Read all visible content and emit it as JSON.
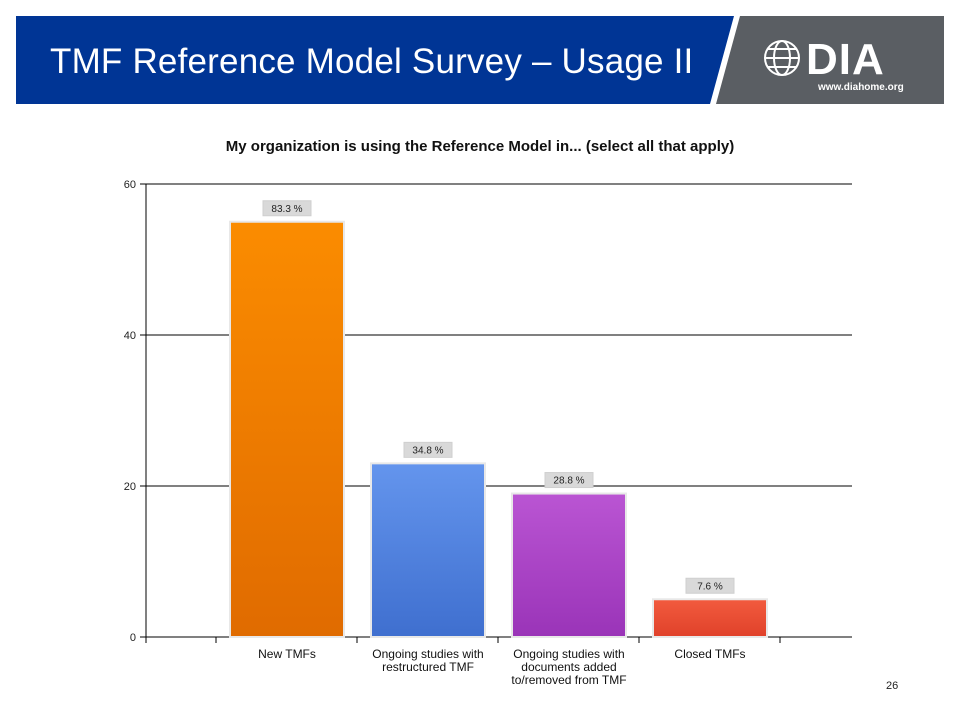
{
  "header": {
    "title": "TMF Reference Model Survey – Usage II",
    "logo_text": "DIA",
    "logo_url": "www.diahome.org",
    "bar_color": "#003595",
    "logo_panel_color": "#5a5e63"
  },
  "chart_data": {
    "type": "bar",
    "title": "My organization is using the Reference Model in... (select all that apply)",
    "categories": [
      "New TMFs",
      "Ongoing studies with restructured TMF",
      "Ongoing studies with documents added to/removed from TMF",
      "Closed TMFs"
    ],
    "category_lines": [
      [
        "New TMFs"
      ],
      [
        "Ongoing studies with",
        "restructured TMF"
      ],
      [
        "Ongoing studies with",
        "documents added",
        "to/removed from TMF"
      ],
      [
        "Closed TMFs"
      ]
    ],
    "values": [
      55,
      23,
      19,
      5
    ],
    "data_labels": [
      "83.3 %",
      "34.8 %",
      "28.8 %",
      "7.6 %"
    ],
    "colors": [
      [
        "#fb8c00",
        "#e06b00"
      ],
      [
        "#6495ed",
        "#3f6fcf"
      ],
      [
        "#ba55d3",
        "#9a34b8"
      ],
      [
        "#f25b3e",
        "#e0412a"
      ]
    ],
    "ylim": [
      0,
      60
    ],
    "yticks": [
      0,
      20,
      40,
      60
    ],
    "grid": true,
    "xlabel": "",
    "ylabel": ""
  },
  "footer": {
    "page_number": "26"
  }
}
